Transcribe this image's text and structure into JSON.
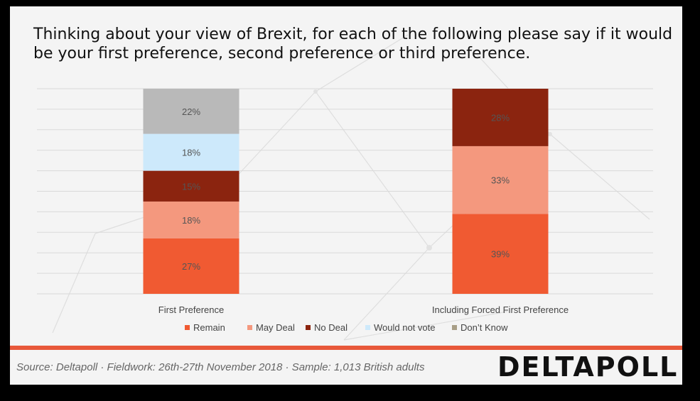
{
  "title": "Thinking about your view of Brexit, for each of the following please say if it would be your first preference, second preference or third preference.",
  "source": "Source: Deltapoll · Fieldwork:  26th-27th November 2018 · Sample: 1,013 British adults",
  "logo_text": "DELTAPOLL",
  "chart_data": {
    "type": "bar",
    "stacked": true,
    "categories": [
      "First Preference",
      "Including Forced First Preference"
    ],
    "series": [
      {
        "name": "Remain",
        "values": [
          27,
          39
        ],
        "color": "#f05a32"
      },
      {
        "name": "May Deal",
        "values": [
          18,
          33
        ],
        "color": "#f4987e"
      },
      {
        "name": "No Deal",
        "values": [
          15,
          28
        ],
        "color": "#8b240f"
      },
      {
        "name": "Would not vote",
        "values": [
          18,
          null
        ],
        "color": "#cde9fb"
      },
      {
        "name": "Don’t Know",
        "values": [
          22,
          null
        ],
        "color": "#b9b9b9"
      }
    ],
    "data_labels": [
      [
        "27%",
        "18%",
        "15%",
        "18%",
        "22%"
      ],
      [
        "39%",
        "33%",
        "28%",
        "",
        ""
      ]
    ],
    "legend_marker_colors": [
      "#f05a32",
      "#f4987e",
      "#8b240f",
      "#cde9fb",
      "#a89e86"
    ],
    "legend_position": "bottom",
    "grid": true,
    "ylim": [
      0,
      100
    ]
  }
}
